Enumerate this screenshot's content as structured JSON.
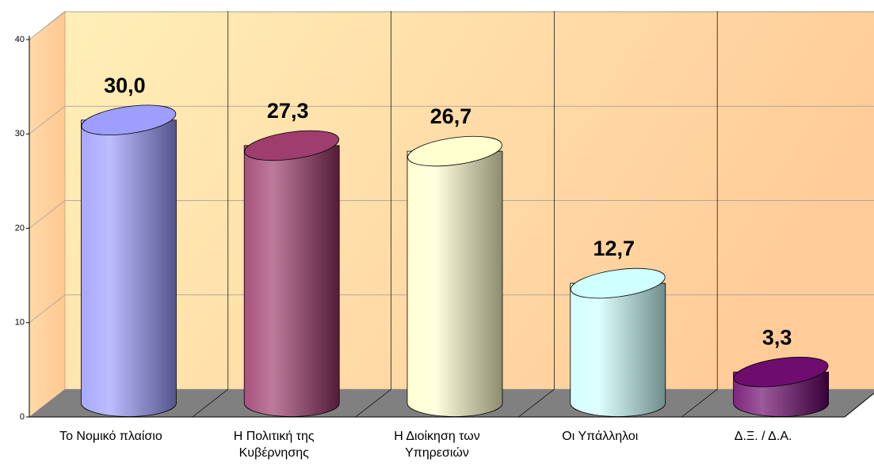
{
  "chart_data": {
    "type": "bar3d",
    "categories": [
      "Το Νομικό πλαίσιο",
      "Η Πολιτική της Κυβέρνησης",
      "Η Διοίκηση των Υπηρεσιών",
      "Οι Υπάλληλοι",
      "Δ.Ξ. / Δ.Α."
    ],
    "values": [
      30.0,
      27.3,
      26.7,
      12.7,
      3.3
    ],
    "value_labels": [
      "30,0",
      "27,3",
      "26,7",
      "12,7",
      "3,3"
    ],
    "colors": [
      "#9999ff",
      "#993366",
      "#ffffcc",
      "#ccffff",
      "#660066"
    ],
    "ylim": [
      0,
      40
    ],
    "yticks": [
      0,
      10,
      20,
      30,
      40
    ],
    "grid": true
  }
}
